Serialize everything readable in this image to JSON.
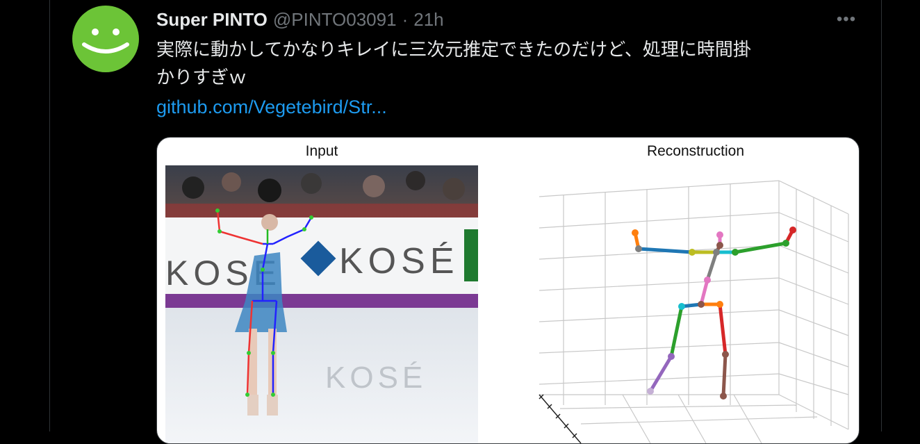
{
  "tweet": {
    "author_name": "Super PINTO",
    "handle": "@PINTO03091",
    "separator": "·",
    "time": "21h",
    "more_label": "•••",
    "text_line1": "実際に動かしてかなりキレイに三次元推定できたのだけど、処理に時間掛",
    "text_line2": "かりすぎｗ",
    "link": "github.com/Vegetebird/Str..."
  },
  "media": {
    "left_title": "Input",
    "right_title": "Reconstruction",
    "banner_text_1": "KOSE",
    "banner_text_2": "KOSÉ",
    "ice_reflection_text": "KOSÉ"
  },
  "colors": {
    "background": "#000000",
    "avatar": "#6cc437",
    "link": "#1d9bf0",
    "secondary": "#71767b"
  },
  "icons": {
    "avatar": "smiley-face-icon",
    "more": "more-horizontal-icon"
  }
}
